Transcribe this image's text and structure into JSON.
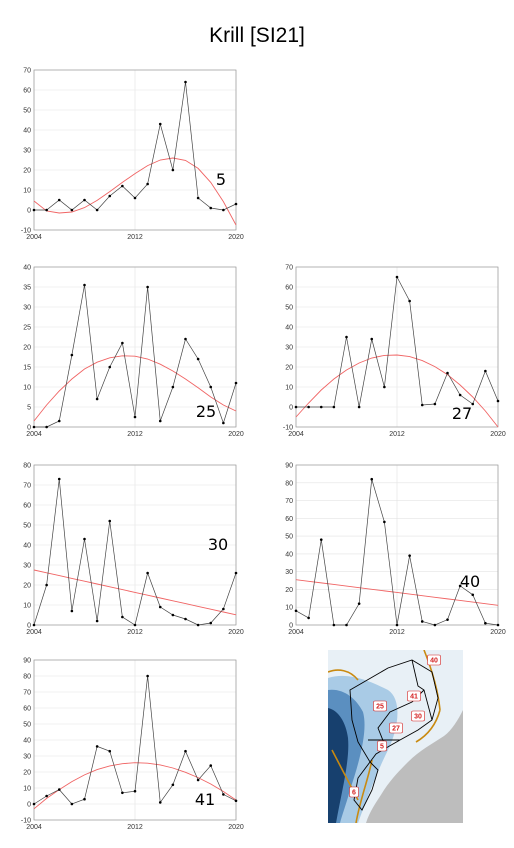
{
  "title": "Krill [SI21]",
  "chart_data": [
    {
      "type": "line",
      "area_label": "5",
      "x": [
        2004,
        2005,
        2006,
        2007,
        2008,
        2009,
        2010,
        2011,
        2012,
        2013,
        2014,
        2015,
        2016,
        2017,
        2018,
        2019,
        2020
      ],
      "values": [
        0,
        0,
        5,
        0,
        5,
        0,
        7,
        12,
        6,
        13,
        43,
        20,
        64,
        6,
        1,
        0,
        3
      ],
      "fit_curve": [
        4.5,
        -0.5,
        -1.5,
        -1.0,
        1.2,
        4.8,
        9.2,
        13.8,
        18.2,
        22.2,
        25.0,
        26.0,
        24.8,
        20.8,
        13.8,
        4.2,
        -7.5
      ],
      "ylim": [
        -10,
        70
      ],
      "yticks": [
        -10,
        0,
        10,
        20,
        30,
        40,
        50,
        60,
        70
      ],
      "xticks": [
        2004,
        2012,
        2020
      ],
      "grid": true
    },
    {
      "type": "line",
      "area_label": "25",
      "x": [
        2004,
        2005,
        2006,
        2007,
        2008,
        2009,
        2010,
        2011,
        2012,
        2013,
        2014,
        2015,
        2016,
        2017,
        2018,
        2019,
        2020
      ],
      "values": [
        0,
        0,
        1.5,
        18,
        35.5,
        7,
        15,
        21,
        2.5,
        35,
        1.5,
        10,
        22,
        17,
        10,
        1,
        11
      ],
      "fit_curve": [
        1.5,
        5.5,
        9.0,
        12.0,
        14.5,
        16.2,
        17.3,
        17.8,
        17.7,
        17.0,
        15.7,
        14.0,
        12.0,
        9.8,
        7.5,
        5.5,
        4.0
      ],
      "ylim": [
        0,
        40
      ],
      "yticks": [
        0,
        5,
        10,
        15,
        20,
        25,
        30,
        35,
        40
      ],
      "xticks": [
        2004,
        2012,
        2020
      ],
      "grid": true
    },
    {
      "type": "line",
      "area_label": "27",
      "x": [
        2004,
        2005,
        2006,
        2007,
        2008,
        2009,
        2010,
        2011,
        2012,
        2013,
        2014,
        2015,
        2016,
        2017,
        2018,
        2019,
        2020
      ],
      "values": [
        0,
        0,
        0,
        0,
        35,
        0,
        34,
        10,
        65,
        53,
        1,
        1.5,
        17,
        6,
        1.5,
        18,
        3
      ],
      "fit_curve": [
        -5,
        2,
        8.5,
        14,
        18.5,
        22,
        24.5,
        25.8,
        26,
        25.2,
        23.2,
        20.2,
        16.2,
        11,
        5,
        -2,
        -10
      ],
      "ylim": [
        -10,
        70
      ],
      "yticks": [
        -10,
        0,
        10,
        20,
        30,
        40,
        50,
        60,
        70
      ],
      "xticks": [
        2004,
        2012,
        2020
      ],
      "grid": true
    },
    {
      "type": "line",
      "area_label": "30",
      "x": [
        2004,
        2005,
        2006,
        2007,
        2008,
        2009,
        2010,
        2011,
        2012,
        2013,
        2014,
        2015,
        2016,
        2017,
        2018,
        2019,
        2020
      ],
      "values": [
        0,
        20,
        73,
        7,
        43,
        2,
        52,
        4,
        0,
        26,
        9,
        5,
        3,
        0,
        1,
        8,
        26
      ],
      "fit_curve": [
        27.5,
        26.1,
        24.7,
        23.3,
        21.9,
        20.5,
        19.1,
        17.7,
        16.3,
        14.9,
        13.5,
        12.1,
        10.7,
        9.3,
        7.9,
        6.5,
        5.1
      ],
      "ylim": [
        0,
        80
      ],
      "yticks": [
        0,
        10,
        20,
        30,
        40,
        50,
        60,
        70,
        80
      ],
      "xticks": [
        2004,
        2012,
        2020
      ],
      "grid": true
    },
    {
      "type": "line",
      "area_label": "40",
      "x": [
        2004,
        2005,
        2006,
        2007,
        2008,
        2009,
        2010,
        2011,
        2012,
        2013,
        2014,
        2015,
        2016,
        2017,
        2018,
        2019,
        2020
      ],
      "values": [
        8,
        4,
        48,
        0,
        0,
        12,
        82,
        58,
        0,
        39,
        2,
        0,
        3,
        22,
        17,
        1,
        0
      ],
      "fit_curve": [
        25.5,
        24.6,
        23.7,
        22.8,
        21.9,
        21.0,
        20.1,
        19.2,
        18.3,
        17.4,
        16.5,
        15.6,
        14.7,
        13.8,
        12.9,
        12.0,
        11.1
      ],
      "ylim": [
        0,
        90
      ],
      "yticks": [
        0,
        10,
        20,
        30,
        40,
        50,
        60,
        70,
        80,
        90
      ],
      "xticks": [
        2004,
        2012,
        2020
      ],
      "grid": true
    },
    {
      "type": "line",
      "area_label": "41",
      "x": [
        2004,
        2005,
        2006,
        2007,
        2008,
        2009,
        2010,
        2011,
        2012,
        2013,
        2014,
        2015,
        2016,
        2017,
        2018,
        2019,
        2020
      ],
      "values": [
        0,
        5,
        9,
        0,
        3,
        36,
        33,
        7,
        8,
        80,
        1,
        12,
        33,
        15,
        24,
        6,
        2
      ],
      "fit_curve": [
        -3,
        3.5,
        9,
        14,
        18.2,
        21.5,
        23.8,
        25.2,
        25.8,
        25.5,
        24.4,
        22.5,
        19.8,
        16.5,
        12.5,
        7.8,
        2.5
      ],
      "ylim": [
        -10,
        90
      ],
      "yticks": [
        -10,
        0,
        10,
        20,
        30,
        40,
        50,
        60,
        70,
        80,
        90
      ],
      "xticks": [
        2004,
        2012,
        2020
      ],
      "grid": true
    }
  ],
  "map": {
    "labels": [
      "40",
      "41",
      "25",
      "30",
      "27",
      "5",
      "6"
    ],
    "colors": {
      "deep_ocean": "#17406e",
      "mid_ocean": "#5b8fc0",
      "shelf": "#a9cbe6",
      "ice": "#e8f0f6",
      "land": "#bdbdbd",
      "box_line": "#c98a10",
      "region_line": "#000000"
    }
  },
  "colors": {
    "series": "#444444",
    "fit": "#f06464",
    "grid": "#e3e3e3",
    "axis": "#999999"
  }
}
